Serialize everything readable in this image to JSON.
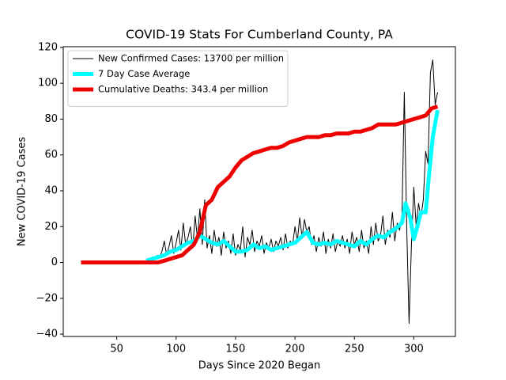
{
  "chart_data": {
    "type": "line",
    "title": "COVID-19 Stats For Cumberland County, PA",
    "xlabel": "Days Since 2020 Began",
    "ylabel": "New COVID-19 Cases",
    "xlim": [
      5,
      335
    ],
    "ylim": [
      -41.3,
      120.4
    ],
    "xticks": [
      50,
      100,
      150,
      200,
      250,
      300
    ],
    "yticks": [
      {
        "value": -40,
        "label": "−40"
      },
      {
        "value": -20,
        "label": "−20"
      },
      0,
      20,
      40,
      60,
      80,
      100,
      120
    ],
    "legend": "upper left",
    "series": [
      {
        "name": "New Confirmed Cases: 13700 per million",
        "color": "#000000",
        "linewidth": 1,
        "x": [
          70,
          72,
          74,
          76,
          78,
          80,
          82,
          84,
          86,
          88,
          90,
          92,
          94,
          96,
          98,
          100,
          102,
          104,
          106,
          108,
          110,
          112,
          114,
          116,
          118,
          120,
          122,
          124,
          126,
          128,
          130,
          132,
          134,
          136,
          138,
          140,
          142,
          144,
          146,
          148,
          150,
          152,
          154,
          156,
          158,
          160,
          162,
          164,
          166,
          168,
          170,
          172,
          174,
          176,
          178,
          180,
          182,
          184,
          186,
          188,
          190,
          192,
          194,
          196,
          198,
          200,
          202,
          204,
          206,
          208,
          210,
          212,
          214,
          216,
          218,
          220,
          222,
          224,
          226,
          228,
          230,
          232,
          234,
          236,
          238,
          240,
          242,
          244,
          246,
          248,
          250,
          252,
          254,
          256,
          258,
          260,
          262,
          264,
          266,
          268,
          270,
          272,
          274,
          276,
          278,
          280,
          282,
          284,
          286,
          288,
          290,
          292,
          294,
          296,
          298,
          300,
          302,
          304,
          306,
          308,
          310,
          312,
          314,
          316,
          318,
          320
        ],
        "values": [
          0,
          1,
          0,
          2,
          1,
          3,
          2,
          4,
          3,
          6,
          12,
          4,
          9,
          15,
          5,
          11,
          18,
          7,
          22,
          10,
          14,
          20,
          8,
          26,
          13,
          30,
          10,
          35,
          8,
          15,
          5,
          18,
          9,
          14,
          4,
          17,
          8,
          12,
          5,
          16,
          4,
          10,
          7,
          20,
          3,
          14,
          10,
          18,
          6,
          12,
          9,
          15,
          5,
          11,
          8,
          13,
          6,
          12,
          9,
          14,
          7,
          16,
          8,
          12,
          10,
          20,
          12,
          25,
          14,
          24,
          17,
          20,
          10,
          15,
          6,
          14,
          9,
          17,
          5,
          13,
          8,
          16,
          6,
          12,
          9,
          15,
          8,
          13,
          5,
          17,
          10,
          14,
          6,
          18,
          8,
          12,
          5,
          20,
          10,
          22,
          12,
          15,
          26,
          10,
          18,
          14,
          28,
          12,
          22,
          18,
          25,
          95,
          20,
          -34,
          10,
          42,
          20,
          33,
          25,
          35,
          62,
          55,
          106,
          113,
          88,
          95
        ]
      },
      {
        "name": "7 Day Case Average",
        "color": "#00ffff",
        "linewidth": 5,
        "x": [
          75,
          80,
          85,
          90,
          95,
          100,
          105,
          110,
          115,
          120,
          125,
          130,
          135,
          140,
          145,
          150,
          155,
          160,
          165,
          170,
          175,
          180,
          185,
          190,
          195,
          200,
          205,
          210,
          215,
          220,
          225,
          230,
          235,
          240,
          245,
          250,
          255,
          260,
          265,
          270,
          275,
          280,
          285,
          290,
          293,
          297,
          300,
          303,
          306,
          310,
          313,
          316,
          320
        ],
        "values": [
          1,
          2,
          3,
          4,
          6,
          7,
          9,
          11,
          12,
          15,
          13,
          11,
          10,
          12,
          9,
          6,
          6,
          7,
          10,
          8,
          9,
          7,
          8,
          9,
          10,
          11,
          14,
          17,
          11,
          10,
          11,
          10,
          12,
          11,
          10,
          9,
          12,
          10,
          13,
          15,
          14,
          17,
          19,
          22,
          33,
          25,
          13,
          20,
          28,
          28,
          50,
          70,
          85
        ]
      },
      {
        "name": "Cumulative Deaths: 343.4 per million",
        "color": "#ee0000",
        "linewidth": 5,
        "x": [
          20,
          25,
          30,
          35,
          40,
          45,
          50,
          55,
          60,
          65,
          70,
          75,
          80,
          85,
          90,
          95,
          100,
          105,
          110,
          115,
          120,
          125,
          130,
          135,
          140,
          145,
          150,
          155,
          160,
          165,
          170,
          175,
          180,
          185,
          190,
          195,
          200,
          205,
          210,
          215,
          220,
          225,
          230,
          235,
          240,
          245,
          250,
          255,
          260,
          265,
          270,
          275,
          280,
          285,
          290,
          295,
          300,
          305,
          310,
          315,
          320
        ],
        "values": [
          0,
          0,
          0,
          0,
          0,
          0,
          0,
          0,
          0,
          0,
          0,
          0,
          0,
          0,
          1,
          2,
          3,
          4,
          7,
          10,
          17,
          32,
          35,
          42,
          45,
          48,
          53,
          57,
          59,
          61,
          62,
          63,
          64,
          64,
          65,
          67,
          68,
          69,
          70,
          70,
          70,
          71,
          71,
          72,
          72,
          72,
          73,
          73,
          74,
          75,
          77,
          77,
          77,
          77,
          78,
          79,
          80,
          81,
          82,
          86,
          87
        ]
      }
    ]
  }
}
